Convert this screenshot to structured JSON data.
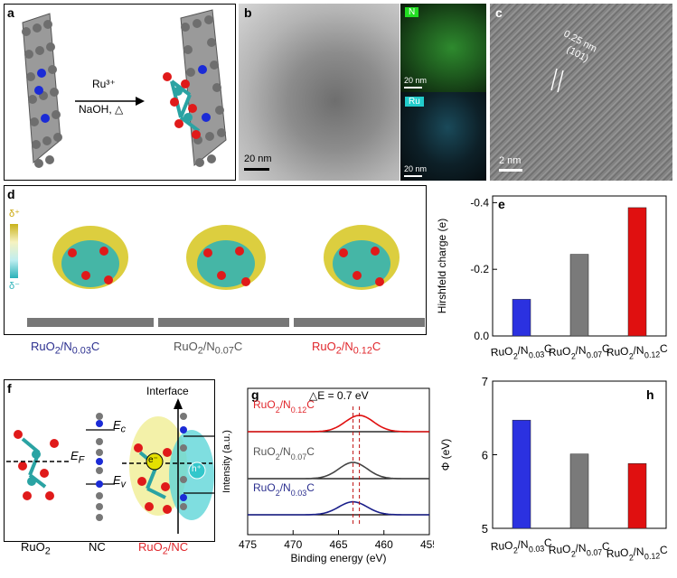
{
  "panels": {
    "a": {
      "label": "a",
      "reagent": "Ru³⁺",
      "conditions": "NaOH, △"
    },
    "b": {
      "label": "b",
      "scale": "20 nm",
      "map_n": "N",
      "map_ru": "Ru",
      "map_scale_top": "20 nm",
      "map_scale_bottom": "20 nm"
    },
    "c": {
      "label": "c",
      "scale": "2 nm",
      "dspacing": "0.25 nm",
      "plane": "(101)"
    },
    "d": {
      "label": "d",
      "delta_plus": "δ⁺",
      "delta_minus": "δ⁻"
    },
    "e": {
      "label": "e"
    },
    "f": {
      "label": "f",
      "interface": "Interface",
      "ec": "E",
      "ec_sub": "c",
      "ef": "E",
      "ef_sub": "F",
      "ev": "E",
      "ev_sub": "v",
      "electron": "e⁻",
      "hole": "h⁺",
      "ruo2": "RuO",
      "ruo2_sub": "2",
      "nc": "NC",
      "ruo2nc": "RuO",
      "ruo2nc_sub": "2",
      "ruo2nc_tail": "/NC"
    },
    "g": {
      "label": "g",
      "delta_e": "△E = 0.7 eV"
    },
    "h": {
      "label": "h"
    }
  },
  "materials": [
    {
      "pre": "RuO",
      "s1": "2",
      "mid": "/N",
      "s2": "0.03",
      "post": "C",
      "color": "#2b2f8f"
    },
    {
      "pre": "RuO",
      "s1": "2",
      "mid": "/N",
      "s2": "0.07",
      "post": "C",
      "color": "#555555"
    },
    {
      "pre": "RuO",
      "s1": "2",
      "mid": "/N",
      "s2": "0.12",
      "post": "C",
      "color": "#e0262b"
    }
  ],
  "chart_data": [
    {
      "type": "bar",
      "panel": "e",
      "categories": [
        "RuO2/N0.03C",
        "RuO2/N0.07C",
        "RuO2/N0.12C"
      ],
      "values": [
        -0.11,
        -0.245,
        -0.385
      ],
      "colors": [
        "#2b31e0",
        "#7a7a7a",
        "#e01010"
      ],
      "ylabel": "Hirshfeld charge (e)",
      "ylim": [
        0.0,
        -0.42
      ],
      "yticks": [
        "0.0",
        "-0.2",
        "-0.4"
      ],
      "ytick_values": [
        0.0,
        -0.2,
        -0.4
      ]
    },
    {
      "type": "bar",
      "panel": "h",
      "categories": [
        "RuO2/N0.03C",
        "RuO2/N0.07C",
        "RuO2/N0.12C"
      ],
      "values": [
        6.47,
        6.01,
        5.88
      ],
      "colors": [
        "#2b31e0",
        "#7a7a7a",
        "#e01010"
      ],
      "ylabel": "Φ (eV)",
      "ylim": [
        5,
        7
      ],
      "yticks": [
        "5",
        "6",
        "7"
      ],
      "ytick_values": [
        5,
        6,
        7
      ]
    },
    {
      "type": "line",
      "panel": "g",
      "xlabel": "Binding energy (eV)",
      "ylabel": "Intensity (a.u.)",
      "xlim": [
        475,
        455
      ],
      "xticks": [
        "475",
        "470",
        "465",
        "460",
        "455"
      ],
      "xtick_values": [
        475,
        470,
        465,
        460,
        455
      ],
      "peak_positions_eV": [
        463.4,
        463.4,
        462.7
      ],
      "series": [
        {
          "name": "RuO2/N0.12C",
          "color": "#e01010",
          "center": 462.7,
          "height": 1.0
        },
        {
          "name": "RuO2/N0.07C",
          "color": "#444444",
          "center": 463.4,
          "height": 1.0
        },
        {
          "name": "RuO2/N0.03C",
          "color": "#1a1f8a",
          "center": 463.4,
          "height": 0.8
        }
      ]
    }
  ]
}
